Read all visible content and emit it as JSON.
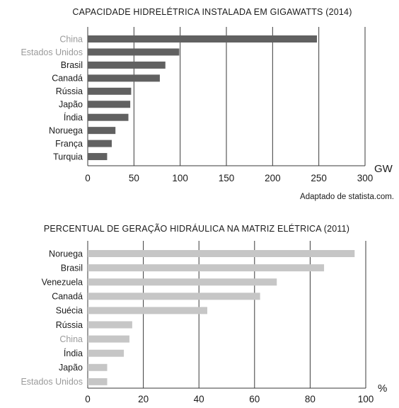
{
  "chart_data": [
    {
      "type": "bar",
      "orientation": "horizontal",
      "title": "CAPACIDADE HIDRELÉTRICA INSTALADA EM GIGAWATTS (2014)",
      "categories": [
        "China",
        "Estados Unidos",
        "Brasil",
        "Canadá",
        "Rússia",
        "Japão",
        "Índia",
        "Noruega",
        "França",
        "Turquia"
      ],
      "highlighted_categories": [
        "China",
        "Estados Unidos"
      ],
      "values": [
        248,
        99,
        84,
        78,
        47,
        46,
        44,
        30,
        26,
        21
      ],
      "xlim": [
        0,
        300
      ],
      "xticks": [
        "0",
        "50",
        "100",
        "150",
        "200",
        "250",
        "300"
      ],
      "xunit": "GW",
      "grid": true,
      "bar_color": "#616161",
      "source": "Adaptado de statista.com."
    },
    {
      "type": "bar",
      "orientation": "horizontal",
      "title": "PERCENTUAL DE GERAÇÃO HIDRÁULICA NA MATRIZ ELÉTRICA (2011)",
      "categories": [
        "Noruega",
        "Brasil",
        "Venezuela",
        "Canadá",
        "Suécia",
        "Rússia",
        "China",
        "Índia",
        "Japão",
        "Estados Unidos"
      ],
      "highlighted_categories": [
        "China",
        "Estados Unidos"
      ],
      "values": [
        96,
        85,
        68,
        62,
        43,
        16,
        15,
        13,
        7,
        7
      ],
      "xlim": [
        0,
        100
      ],
      "xticks": [
        "0",
        "20",
        "40",
        "60",
        "80",
        "100"
      ],
      "xunit": "%",
      "grid": true,
      "bar_color": "#c6c6c6"
    }
  ]
}
